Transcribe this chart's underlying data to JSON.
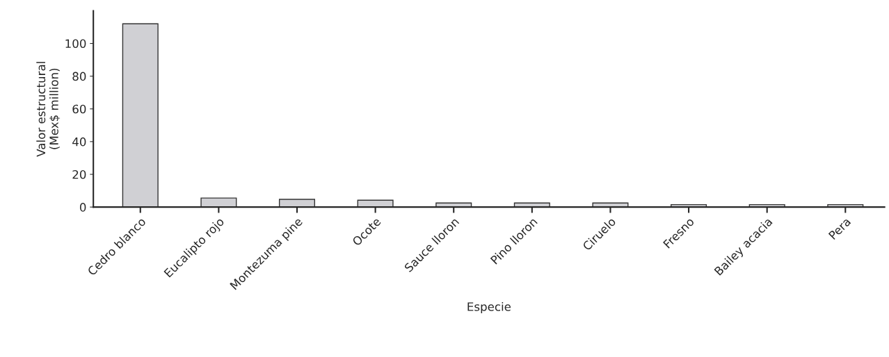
{
  "chart_data": {
    "type": "bar",
    "xlabel": "Especie",
    "ylabel": "Valor estructural\n(Mex$ million)",
    "categories": [
      "Cedro blanco",
      "Eucalipto rojo",
      "Montezuma pine",
      "Ocote",
      "Sauce lloron",
      "Pino lloron",
      "Ciruelo",
      "Fresno",
      "Bailey acacia",
      "Pera"
    ],
    "values": [
      112,
      5.5,
      4.7,
      4.2,
      2.5,
      2.5,
      2.5,
      1.5,
      1.5,
      1.5
    ],
    "color": "#d0d0d4",
    "ylim": [
      0,
      120
    ],
    "yticks": [
      0,
      20,
      40,
      60,
      80,
      100
    ],
    "grid": false,
    "legend": false
  }
}
